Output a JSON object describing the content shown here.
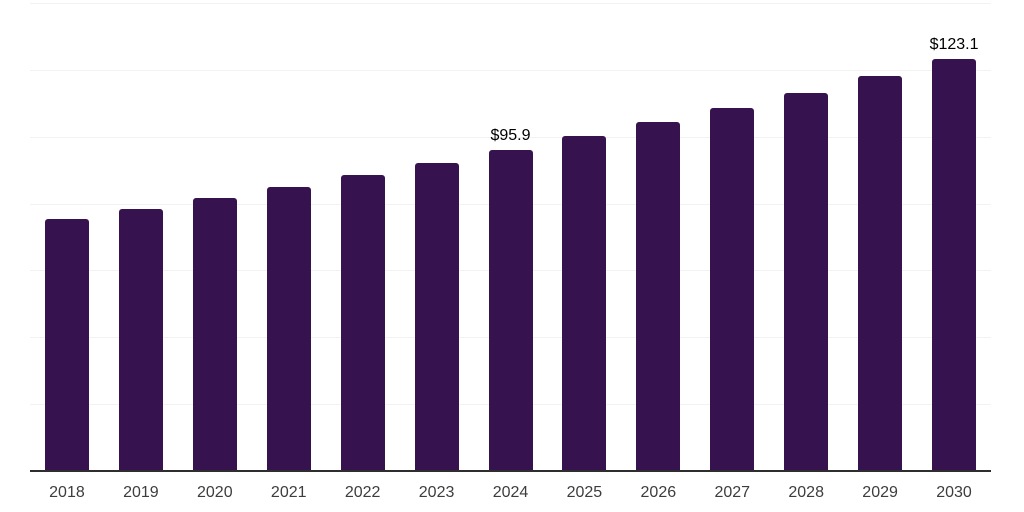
{
  "chart_data": {
    "type": "bar",
    "title": "",
    "xlabel": "",
    "ylabel": "",
    "categories": [
      "2018",
      "2019",
      "2020",
      "2021",
      "2022",
      "2023",
      "2024",
      "2025",
      "2026",
      "2027",
      "2028",
      "2029",
      "2030"
    ],
    "values": [
      75.3,
      78.4,
      81.6,
      84.9,
      88.6,
      92.1,
      95.9,
      100.2,
      104.4,
      108.5,
      113.2,
      118.1,
      123.1
    ],
    "data_labels": {
      "2024": "$95.9",
      "2030": "$123.1"
    },
    "ylim": [
      0,
      140
    ],
    "gridline_step": 20,
    "grid": true,
    "legend": false,
    "colors": {
      "bar": "#36124e",
      "gridline": "#f2f2f2",
      "axis_line": "#2e2e2e",
      "tick_label": "#3d3d3d",
      "value_label": "#000000",
      "background": "#ffffff"
    }
  }
}
